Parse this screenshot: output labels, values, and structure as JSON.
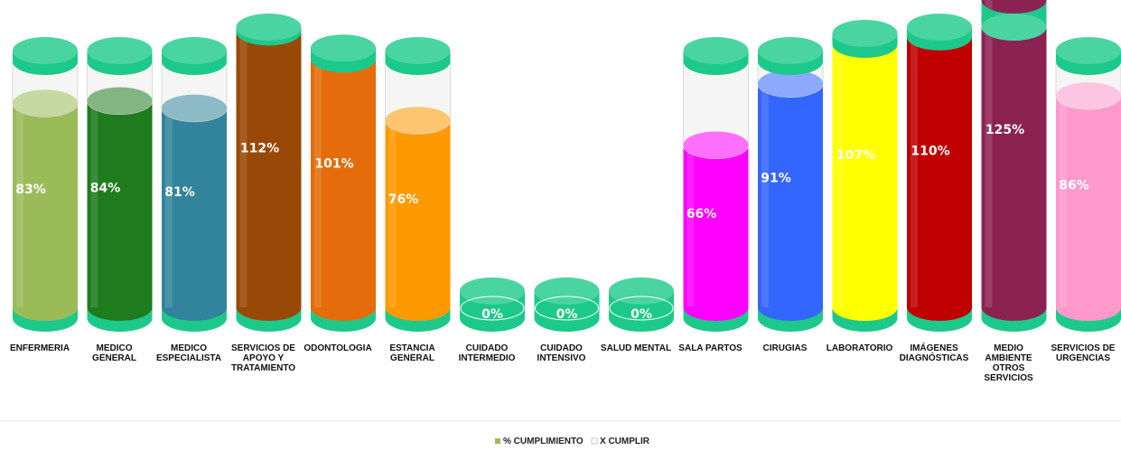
{
  "chart_data": {
    "type": "bar",
    "style": "3d-cylinder-stacked",
    "categories": [
      "ENFERMERIA",
      "MEDICO GENERAL",
      "MEDICO ESPECIALISTA",
      "SERVICIOS DE APOYO Y TRATAMIENTO",
      "ODONTOLOGIA",
      "ESTANCIA GENERAL",
      "CUIDADO INTERMEDIO",
      "CUIDADO INTENSIVO",
      "SALUD MENTAL",
      "SALA PARTOS",
      "CIRUGIAS",
      "LABORATORIO",
      "IMÁGENES DIAGNÓSTICAS",
      "MEDIO AMBIENTE OTROS SERVICIOS",
      "SERVICIOS DE URGENCIAS"
    ],
    "category_label_lines": [
      [
        "ENFERMERIA"
      ],
      [
        "MEDICO",
        "GENERAL"
      ],
      [
        "MEDICO",
        "ESPECIALISTA"
      ],
      [
        "SERVICIOS DE",
        "APOYO Y",
        "TRATAMIENTO"
      ],
      [
        "ODONTOLOGIA"
      ],
      [
        "ESTANCIA",
        "GENERAL"
      ],
      [
        "CUIDADO",
        "INTERMEDIO"
      ],
      [
        "CUIDADO",
        "INTENSIVO"
      ],
      [
        "SALUD MENTAL"
      ],
      [
        "SALA PARTOS"
      ],
      [
        "CIRUGIAS"
      ],
      [
        "LABORATORIO"
      ],
      [
        "IMÁGENES",
        "DIAGNÓSTICAS"
      ],
      [
        "MEDIO",
        "AMBIENTE",
        "OTROS",
        "SERVICIOS"
      ],
      [
        "SERVICIOS DE",
        "URGENCIAS"
      ]
    ],
    "series": [
      {
        "name": "% CUMPLIMIENTO",
        "values": [
          83,
          84,
          81,
          112,
          101,
          76,
          0,
          0,
          0,
          66,
          91,
          107,
          110,
          125,
          86
        ],
        "labels": [
          "83%",
          "84%",
          "81%",
          "112%",
          "101%",
          "76%",
          "0%",
          "0%",
          "0%",
          "66%",
          "91%",
          "107%",
          "110%",
          "125%",
          "86%"
        ]
      },
      {
        "name": "X CUMPLIR",
        "values": [
          17,
          16,
          19,
          0,
          0,
          24,
          0,
          0,
          0,
          34,
          9,
          0,
          0,
          0,
          14
        ]
      }
    ],
    "bar_colors": [
      "#9bbb59",
      "#1e7b1e",
      "#31849b",
      "#984807",
      "#e46c0a",
      "#ff9900",
      "#00b050",
      "#00b050",
      "#00b050",
      "#ff00ff",
      "#3366ff",
      "#ffff00",
      "#c00000",
      "#8b2252",
      "#ff99cc"
    ],
    "cap_color": "#1dc98a",
    "remainder_color": "#f5f5f5",
    "legend": {
      "position": "bottom",
      "items": [
        "% CUMPLIMIENTO",
        "X CUMPLIR"
      ],
      "swatch_colors": [
        "#9bbb59",
        "#ffffff"
      ]
    },
    "ylim": [
      0,
      125
    ],
    "grid": false
  }
}
